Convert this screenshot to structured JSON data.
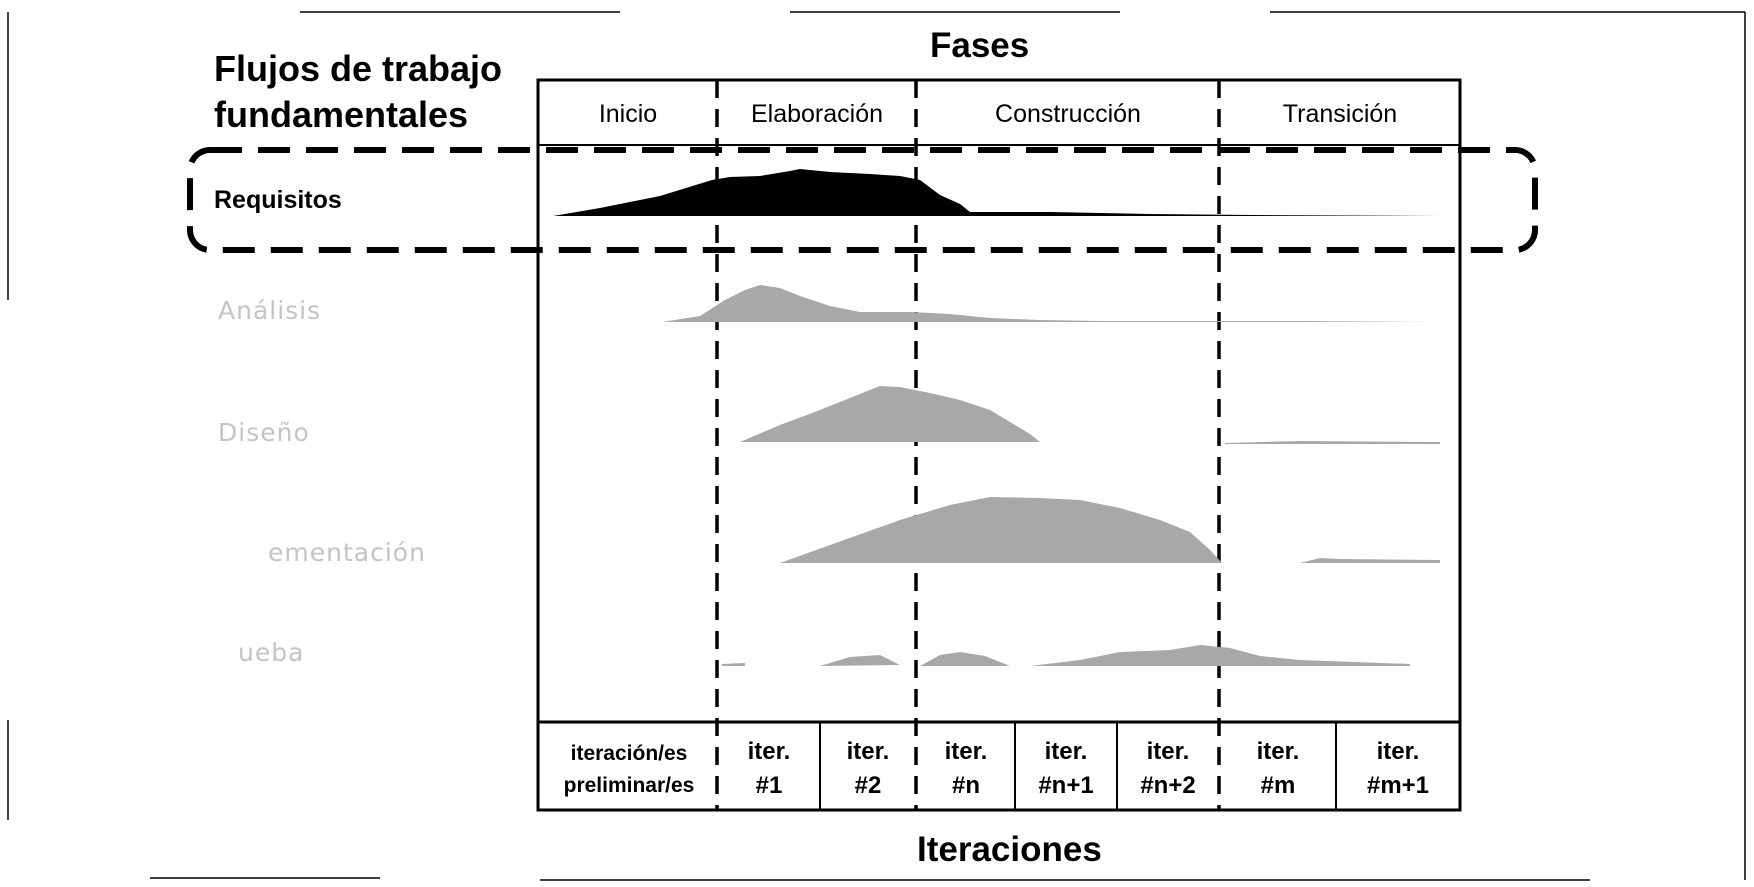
{
  "titles": {
    "phases": "Fases",
    "workflows_line1": "Flujos de trabajo",
    "workflows_line2": "fundamentales",
    "iterations": "Iteraciones"
  },
  "phases": [
    "Inicio",
    "Elaboración",
    "Construcción",
    "Transición"
  ],
  "workflows": [
    "Requisitos",
    "Análisis",
    "Diseño",
    "Implementación",
    "Prueba"
  ],
  "workflow_display": [
    "Requisitos",
    "Análisis",
    "Diseño",
    "ementación",
    "ueba"
  ],
  "highlighted_workflow": "Requisitos",
  "iterations": [
    {
      "line1": "iteración/es",
      "line2": "preliminar/es"
    },
    {
      "line1": "iter.",
      "line2": "#1"
    },
    {
      "line1": "iter.",
      "line2": "#2"
    },
    {
      "line1": "iter.",
      "line2": "#n"
    },
    {
      "line1": "iter.",
      "line2": "#n+1"
    },
    {
      "line1": "iter.",
      "line2": "#n+2"
    },
    {
      "line1": "iter.",
      "line2": "#m"
    },
    {
      "line1": "iter.",
      "line2": "#m+1"
    }
  ],
  "colors": {
    "highlight_curve": "#000000",
    "faded_curve": "#a8a8a8",
    "faded_text": "#c4c4c4",
    "lines": "#000000"
  }
}
